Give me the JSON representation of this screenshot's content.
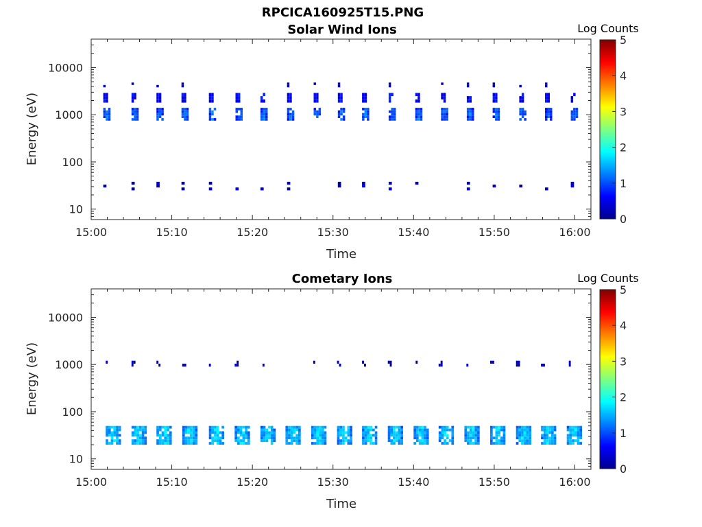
{
  "figure_title": "RPCICA160925T15.PNG",
  "chart_data": [
    {
      "type": "heatmap",
      "title": "Solar Wind Ions",
      "xlabel": "Time",
      "ylabel": "Energy (eV)",
      "x_ticks": [
        "15:00",
        "15:10",
        "15:20",
        "15:30",
        "15:40",
        "15:50",
        "16:00"
      ],
      "x_range_minutes": [
        0,
        62
      ],
      "y_ticks": [
        10,
        100,
        1000,
        10000
      ],
      "y_tick_labels": [
        "10",
        "100",
        "1000",
        "10000"
      ],
      "ylim": [
        6,
        40000
      ],
      "y_scale": "log",
      "colorbar": {
        "label": "Log Counts",
        "range": [
          0,
          5
        ],
        "ticks": [
          "0",
          "1",
          "2",
          "3",
          "4",
          "5"
        ],
        "colormap": "jet"
      },
      "scan_start_minutes": [
        1.5,
        5.0,
        8.1,
        11.2,
        14.6,
        17.9,
        21.0,
        24.3,
        27.6,
        30.6,
        33.6,
        36.9,
        40.2,
        43.4,
        46.6,
        49.8,
        53.1,
        56.3,
        59.5
      ],
      "blobs": [
        {
          "energy_lo": 750,
          "energy_hi": 1400,
          "width_min": 0.9,
          "level": 1.0
        },
        {
          "energy_lo": 1800,
          "energy_hi": 2900,
          "width_min": 0.6,
          "level": 0.6
        },
        {
          "energy_lo": 3800,
          "energy_hi": 4800,
          "width_min": 0.3,
          "level": 0.2,
          "sparse": true
        },
        {
          "energy_lo": 25,
          "energy_hi": 38,
          "width_min": 0.4,
          "level": 0.2,
          "sparse": true
        }
      ]
    },
    {
      "type": "heatmap",
      "title": "Cometary Ions",
      "xlabel": "Time",
      "ylabel": "Energy (eV)",
      "x_ticks": [
        "15:00",
        "15:10",
        "15:20",
        "15:30",
        "15:40",
        "15:50",
        "16:00"
      ],
      "x_range_minutes": [
        0,
        62
      ],
      "y_ticks": [
        10,
        100,
        1000,
        10000
      ],
      "y_tick_labels": [
        "10",
        "100",
        "1000",
        "10000"
      ],
      "ylim": [
        6,
        40000
      ],
      "y_scale": "log",
      "colorbar": {
        "label": "Log Counts",
        "range": [
          0,
          5
        ],
        "ticks": [
          "0",
          "1",
          "2",
          "3",
          "4",
          "5"
        ],
        "colormap": "jet"
      },
      "scan_start_minutes": [
        1.8,
        5.0,
        8.1,
        11.3,
        14.6,
        17.8,
        21.0,
        24.1,
        27.3,
        30.5,
        33.6,
        36.8,
        40.0,
        43.1,
        46.3,
        49.5,
        52.7,
        55.8,
        59.0
      ],
      "blobs": [
        {
          "energy_lo": 20,
          "energy_hi": 50,
          "width_min": 1.9,
          "level": 1.5
        },
        {
          "energy_lo": 900,
          "energy_hi": 1200,
          "width_min": 0.5,
          "level": 0.2,
          "sparse": true
        }
      ]
    }
  ]
}
